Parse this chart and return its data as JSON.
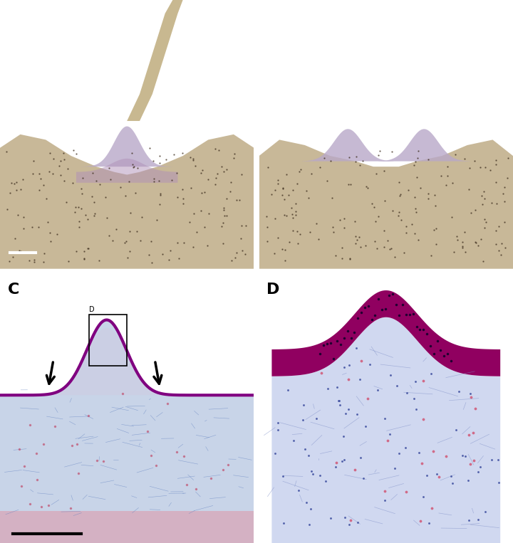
{
  "figure_width": 7.2,
  "figure_height": 7.63,
  "dpi": 100,
  "panel_label_color": "white",
  "panel_label_color_bottom": "black",
  "panel_label_fontsize": 16,
  "panel_label_fontweight": "bold",
  "panel_positions": {
    "A": [
      0.0,
      0.505,
      0.495,
      0.495
    ],
    "B": [
      0.505,
      0.505,
      0.495,
      0.495
    ],
    "C": [
      0.0,
      0.0,
      0.495,
      0.495
    ],
    "D": [
      0.505,
      0.0,
      0.495,
      0.495
    ]
  },
  "bg_color_A": "#1a1008",
  "bg_color_B": "#2a2520",
  "bg_color_C": "#d8dae0",
  "bg_color_D": "#d8dce8"
}
